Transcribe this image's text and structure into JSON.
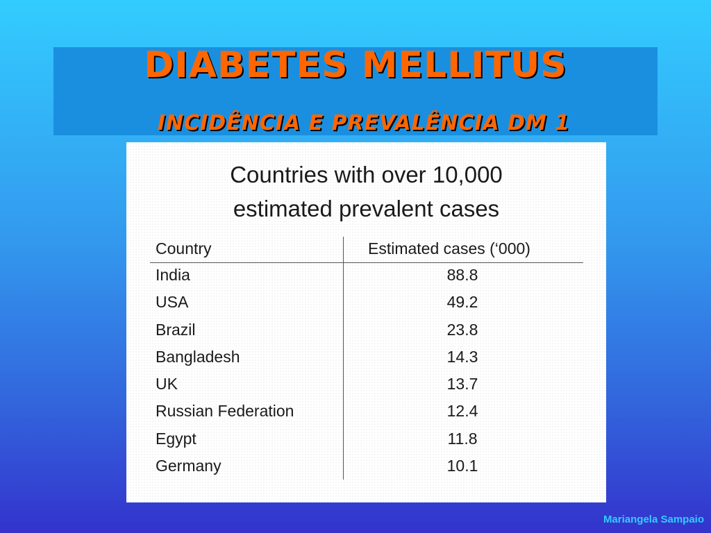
{
  "slide": {
    "title": "DIABETES MELLITUS",
    "subtitle": "INCIDÊNCIA E PREVALÊNCIA DM 1",
    "footer": "Mariangela Sampaio"
  },
  "card": {
    "title_line1": "Countries with over 10,000",
    "title_line2": "estimated prevalent cases",
    "headers": {
      "country": "Country",
      "cases": "Estimated cases (‘000)"
    },
    "rows": [
      {
        "country": "India",
        "cases": "88.8"
      },
      {
        "country": "USA",
        "cases": "49.2"
      },
      {
        "country": "Brazil",
        "cases": "23.8"
      },
      {
        "country": "Bangladesh",
        "cases": "14.3"
      },
      {
        "country": "UK",
        "cases": "13.7"
      },
      {
        "country": "Russian Federation",
        "cases": "12.4"
      },
      {
        "country": "Egypt",
        "cases": "11.8"
      },
      {
        "country": "Germany",
        "cases": "10.1"
      }
    ]
  }
}
